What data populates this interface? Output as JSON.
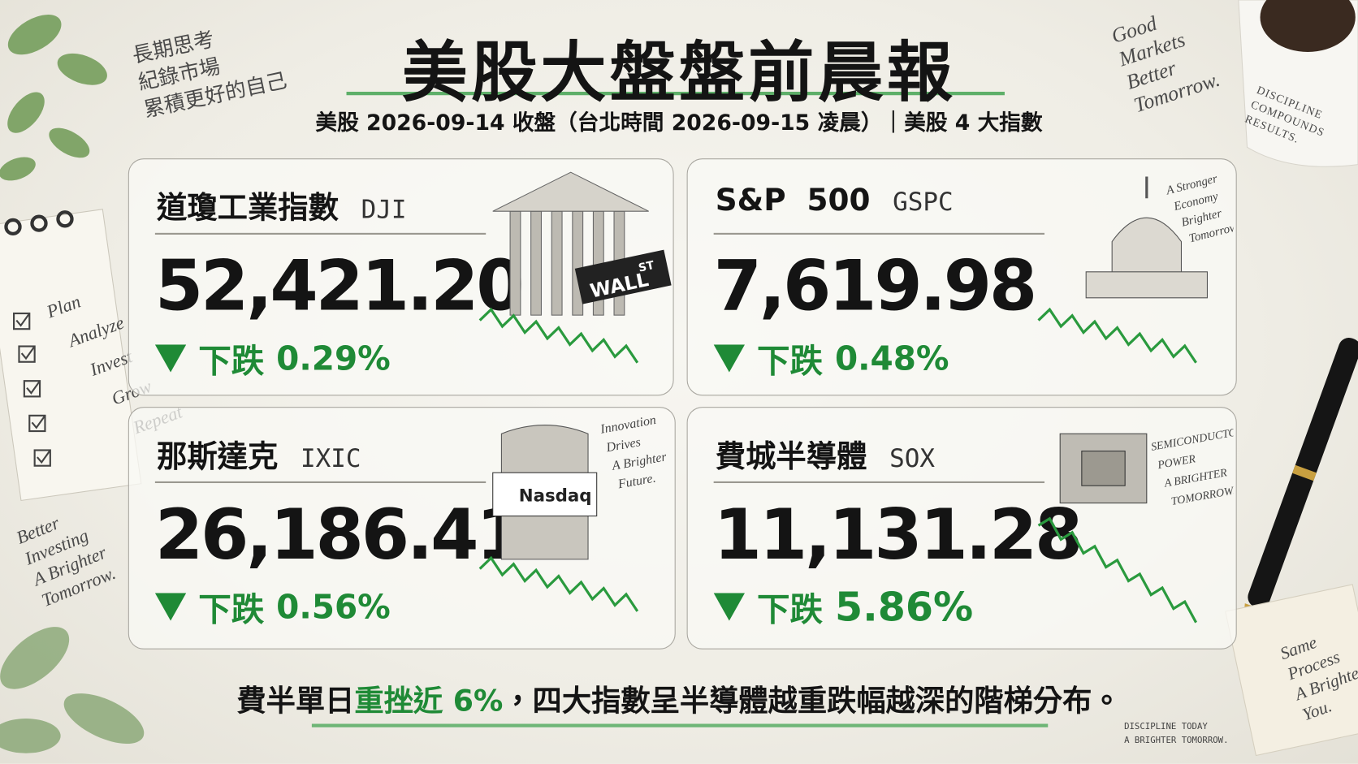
{
  "header": {
    "title": "美股大盤盤前晨報",
    "subtitle": "美股 2026-09-14 收盤（台北時間 2026-09-15 凌晨）｜美股 4 大指數"
  },
  "cards": [
    {
      "name": "道瓊工業指數",
      "code": "DJI",
      "value": "52,421.20",
      "direction": "下跌",
      "change": "0.29%",
      "art_text": [
        "WALL",
        "ST"
      ]
    },
    {
      "name": "S&P  500",
      "code": "GSPC",
      "value": "7,619.98",
      "direction": "下跌",
      "change": "0.48%",
      "art_text": [
        "A Stronger",
        "Economy",
        "Brighter",
        "Tomorrow."
      ]
    },
    {
      "name": "那斯達克",
      "code": "IXIC",
      "value": "26,186.41",
      "direction": "下跌",
      "change": "0.56%",
      "art_text": [
        "Nasdaq",
        "Innovation",
        "Drives",
        "A Brighter",
        "Future."
      ]
    },
    {
      "name": "費城半導體",
      "code": "SOX",
      "value": "11,131.28",
      "direction": "下跌",
      "change": "5.86%",
      "art_text": [
        "SEMICONDUCTORS",
        "POWER",
        "A BRIGHTER",
        "TOMORROW."
      ]
    }
  ],
  "footer": {
    "parts": [
      "費半單日",
      "重挫近 6%",
      "，四大指數呈半導體越重跌幅越深的階梯分布。"
    ],
    "tagline": [
      "DISCIPLINE TODAY",
      "A BRIGHTER TOMORROW."
    ]
  },
  "notes": {
    "top_left": [
      "長期思考",
      "紀錄市場",
      "累積更好的自己"
    ],
    "top_right": [
      "Good",
      "Markets",
      "Better",
      "Tomorrow."
    ],
    "mug": [
      "DISCIPLINE",
      "COMPOUNDS",
      "RESULTS."
    ],
    "checklist": [
      "Plan",
      "Analyze",
      "Invest",
      "Grow",
      "Repeat"
    ],
    "bottom_left": [
      "Better",
      "Investing",
      "A Brighter",
      "Tomorrow."
    ],
    "sticky": [
      "Same",
      "Process",
      "A Brighter",
      "You."
    ]
  }
}
